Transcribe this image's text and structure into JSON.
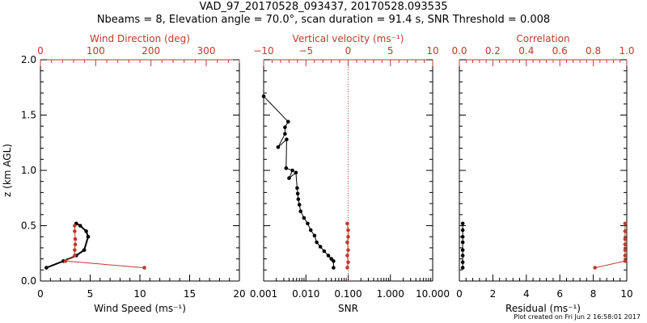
{
  "figure": {
    "title_line1": "VAD_97_20170528_093437, 20170528.093535",
    "title_line2": "Nbeams = 8, Elevation angle = 70.0°, scan duration = 91.4 s, SNR Threshold = 0.008",
    "footer": "Plot created on Fri Jun  2 16:58:01 2017"
  },
  "colors": {
    "axis": "#000000",
    "red": "#c0392b"
  },
  "chart_data": [
    {
      "type": "line",
      "panel": "wind",
      "ylabel": "z (km AGL)",
      "ylim": [
        0,
        2
      ],
      "yticks": [
        0.0,
        0.5,
        1.0,
        1.5,
        2.0
      ],
      "ytick_labels": [
        "0.0",
        "0.5",
        "1.0",
        "1.5",
        "2.0"
      ],
      "xlabel": "Wind Speed (ms⁻¹)",
      "xlim": [
        0,
        20
      ],
      "xticks": [
        0,
        5,
        10,
        15,
        20
      ],
      "xtick_labels": [
        "0",
        "5",
        "10",
        "15",
        "20"
      ],
      "top_label": "Wind Direction (deg)",
      "top_xlim": [
        0,
        360
      ],
      "top_ticks": [
        0,
        100,
        200,
        300
      ],
      "top_tick_labels": [
        "0",
        "100",
        "200",
        "300"
      ],
      "series": [
        {
          "axis": "bottom",
          "color": "#000000",
          "x": [
            0.6,
            2.3,
            3.6,
            4.4,
            4.8,
            4.6,
            4.0,
            3.6
          ],
          "y": [
            0.12,
            0.18,
            0.23,
            0.28,
            0.4,
            0.45,
            0.5,
            0.52
          ]
        },
        {
          "axis": "top",
          "color": "#c0392b",
          "x": [
            188,
            45,
            62,
            62,
            63,
            63,
            62,
            62
          ],
          "y": [
            0.12,
            0.18,
            0.23,
            0.28,
            0.33,
            0.38,
            0.45,
            0.5
          ]
        }
      ]
    },
    {
      "type": "line",
      "panel": "snr",
      "xlabel": "SNR",
      "xscale": "log",
      "xlim": [
        0.001,
        10
      ],
      "xticks": [
        0.001,
        0.01,
        0.1,
        1,
        10
      ],
      "xtick_labels": [
        "0.001",
        "0.010",
        "0.100",
        "1.000",
        "10.000"
      ],
      "ylim": [
        0,
        2
      ],
      "top_label": "Vertical velocity (ms⁻¹)",
      "top_xlim": [
        -10,
        10
      ],
      "top_ticks": [
        -10,
        -5,
        0,
        5,
        10
      ],
      "top_tick_labels": [
        "−10",
        "−5",
        "0",
        "5",
        "10"
      ],
      "zero_line": 0,
      "series": [
        {
          "axis": "bottom",
          "color": "#000000",
          "x": [
            0.001,
            0.0038,
            0.0032,
            0.0032,
            0.0022,
            0.0035,
            0.0034,
            0.0048,
            0.004,
            0.0058,
            0.0062,
            0.0064,
            0.0066,
            0.007,
            0.0075,
            0.009,
            0.011,
            0.013,
            0.016,
            0.018,
            0.022,
            0.027,
            0.034,
            0.04,
            0.045,
            0.045
          ],
          "y": [
            1.67,
            1.44,
            1.39,
            1.33,
            1.21,
            1.28,
            1.02,
            1.0,
            0.93,
            0.98,
            0.84,
            0.79,
            0.74,
            0.69,
            0.63,
            0.57,
            0.52,
            0.46,
            0.41,
            0.35,
            0.31,
            0.27,
            0.23,
            0.2,
            0.18,
            0.12
          ]
        },
        {
          "axis": "top",
          "color": "#c0392b",
          "x": [
            -0.1,
            0.0,
            -0.1,
            0.0,
            -0.1,
            0.0,
            0.0,
            -0.1
          ],
          "y": [
            0.12,
            0.17,
            0.23,
            0.28,
            0.35,
            0.4,
            0.46,
            0.52
          ]
        }
      ]
    },
    {
      "type": "line",
      "panel": "residual",
      "xlabel": "Residual (ms⁻¹)",
      "xlim": [
        0,
        10
      ],
      "xticks": [
        0,
        2,
        4,
        6,
        8,
        10
      ],
      "xtick_labels": [
        "0",
        "2",
        "4",
        "6",
        "8",
        "10"
      ],
      "ylim": [
        0,
        2
      ],
      "top_label": "Correlation",
      "top_xlim": [
        0,
        1
      ],
      "top_ticks": [
        0.0,
        0.2,
        0.4,
        0.6,
        0.8,
        1.0
      ],
      "top_tick_labels": [
        "0.0",
        "0.2",
        "0.4",
        "0.6",
        "0.8",
        "1.0"
      ],
      "series": [
        {
          "axis": "bottom",
          "color": "#000000",
          "x": [
            0.2,
            0.2,
            0.2,
            0.2,
            0.2,
            0.2,
            0.2,
            0.2
          ],
          "y": [
            0.12,
            0.17,
            0.23,
            0.28,
            0.35,
            0.4,
            0.46,
            0.52
          ]
        },
        {
          "axis": "top",
          "color": "#c0392b",
          "x": [
            0.81,
            0.99,
            0.99,
            0.99,
            0.99,
            0.99,
            0.99,
            0.99
          ],
          "y": [
            0.12,
            0.18,
            0.23,
            0.28,
            0.33,
            0.38,
            0.45,
            0.52
          ]
        }
      ]
    }
  ]
}
